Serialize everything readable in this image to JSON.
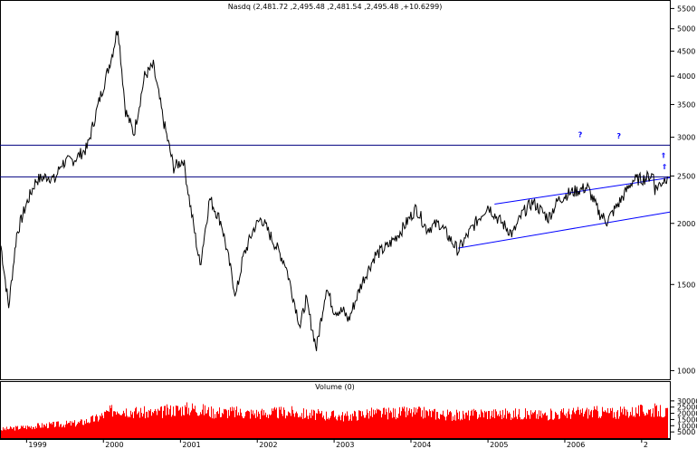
{
  "chart_data": [
    {
      "type": "line",
      "title": "Nasdq (2,481.72 ,2,495.48 ,2,481.54 ,2,495.48 ,+10.6299)",
      "xlabel": "",
      "ylabel": "",
      "y_scale": "log",
      "ylim": [
        960,
        5700
      ],
      "y_ticks": [
        5500,
        5000,
        4500,
        4000,
        3500,
        3000,
        2500,
        2000,
        1500,
        1000
      ],
      "x_ticks": [
        "1999",
        "2000",
        "2001",
        "2002",
        "2003",
        "2004",
        "2005",
        "2006",
        "2"
      ],
      "xlim": [
        "1998-09-01",
        "2007-05-15"
      ],
      "grid": false,
      "line_color": "#000000",
      "series": [
        {
          "x": [
            "1998-09-01",
            "1998-10-08",
            "1998-11-15",
            "1998-12-31",
            "1999-02-15",
            "1999-04-15",
            "1999-05-15",
            "1999-06-15",
            "1999-08-15",
            "1999-10-15",
            "1999-12-15",
            "2000-01-15",
            "2000-02-15",
            "2000-03-10",
            "2000-04-15",
            "2000-05-25",
            "2000-07-15",
            "2000-08-25",
            "2000-10-15",
            "2000-11-30",
            "2001-01-15",
            "2001-02-15",
            "2001-04-04",
            "2001-05-20",
            "2001-07-15",
            "2001-09-21",
            "2001-10-25",
            "2001-12-15",
            "2002-01-20",
            "2002-03-15",
            "2002-05-15",
            "2002-07-24",
            "2002-08-20",
            "2002-10-09",
            "2002-11-25",
            "2002-12-31",
            "2003-02-15",
            "2003-03-11",
            "2003-05-15",
            "2003-07-15",
            "2003-09-15",
            "2003-11-15",
            "2004-01-26",
            "2004-03-15",
            "2004-05-15",
            "2004-08-12",
            "2004-10-15",
            "2004-12-31",
            "2005-02-15",
            "2005-04-28",
            "2005-06-15",
            "2005-08-02",
            "2005-10-15",
            "2005-11-30",
            "2006-01-15",
            "2006-04-19",
            "2006-06-13",
            "2006-07-20",
            "2006-09-15",
            "2006-11-20",
            "2007-01-15",
            "2007-02-26",
            "2007-03-05",
            "2007-04-15",
            "2007-05-04"
          ],
          "y": [
            1800,
            1350,
            1900,
            2190,
            2450,
            2500,
            2450,
            2650,
            2700,
            2850,
            3600,
            4000,
            4500,
            5050,
            3400,
            3050,
            4000,
            4200,
            3200,
            2600,
            2700,
            2200,
            1640,
            2250,
            2000,
            1420,
            1700,
            1950,
            2050,
            1850,
            1650,
            1230,
            1400,
            1110,
            1480,
            1330,
            1320,
            1270,
            1520,
            1720,
            1800,
            1930,
            2150,
            1950,
            2000,
            1760,
            1950,
            2175,
            2050,
            1900,
            2100,
            2210,
            2050,
            2230,
            2300,
            2370,
            2100,
            2020,
            2200,
            2450,
            2470,
            2520,
            2350,
            2450,
            2495
          ]
        }
      ],
      "horizontal_lines": [
        {
          "value": 2890,
          "color": "#000080"
        },
        {
          "value": 2490,
          "color": "#000080"
        }
      ],
      "channel_lines": [
        {
          "x": [
            "2004-08-12",
            "2007-05-15"
          ],
          "y": [
            1780,
            2110
          ],
          "color": "#0000ff"
        },
        {
          "x": [
            "2005-02-01",
            "2007-05-15"
          ],
          "y": [
            2190,
            2480
          ],
          "color": "#0000ff"
        }
      ],
      "annotations": [
        {
          "text": "?",
          "x": "2006-03-15",
          "y": 3000
        },
        {
          "text": "?",
          "x": "2006-09-15",
          "y": 2980
        },
        {
          "text": "⇑",
          "x": "2007-04-15",
          "y": 2720
        },
        {
          "text": "⇑",
          "x": "2007-04-20",
          "y": 2580
        }
      ]
    },
    {
      "type": "bar",
      "title": "Volume (0)",
      "y_ticks": [
        30000,
        25000,
        20000,
        15000,
        10000,
        5000
      ],
      "ylim": [
        0,
        35000
      ],
      "bar_color": "#ff0000",
      "x": [
        "1998-09-01",
        "1998-12-01",
        "1999-03-01",
        "1999-06-01",
        "1999-09-01",
        "1999-12-01",
        "2000-03-01",
        "2000-06-01",
        "2000-09-01",
        "2000-12-01",
        "2001-03-01",
        "2001-06-01",
        "2001-09-01",
        "2001-12-01",
        "2002-03-01",
        "2002-06-01",
        "2002-09-01",
        "2002-12-01",
        "2003-03-01",
        "2003-06-01",
        "2003-09-01",
        "2003-12-01",
        "2004-03-01",
        "2004-06-01",
        "2004-09-01",
        "2004-12-01",
        "2005-03-01",
        "2005-06-01",
        "2005-09-01",
        "2005-12-01",
        "2006-03-01",
        "2006-06-01",
        "2006-09-01",
        "2006-12-01",
        "2007-03-01",
        "2007-05-04"
      ],
      "values": [
        7000,
        8500,
        10000,
        11000,
        12000,
        16000,
        24000,
        21000,
        20000,
        23000,
        24000,
        21000,
        21000,
        20000,
        20000,
        21000,
        19000,
        18500,
        17500,
        20000,
        20000,
        20500,
        20500,
        19000,
        18000,
        20000,
        19500,
        19500,
        18500,
        19500,
        20500,
        21000,
        20000,
        21500,
        22500,
        20000
      ]
    }
  ]
}
